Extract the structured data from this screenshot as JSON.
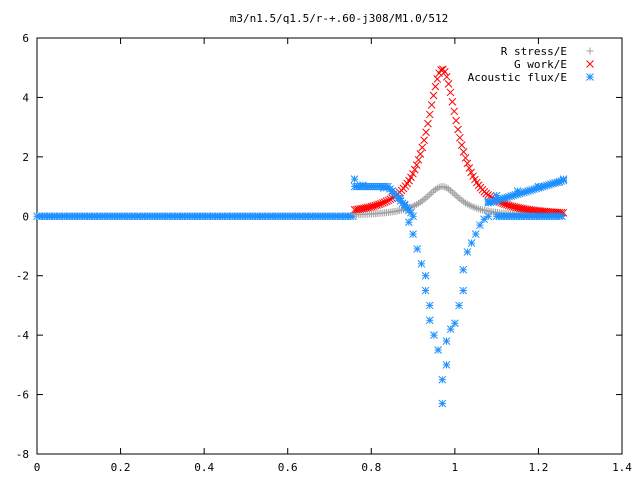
{
  "chart_data": {
    "type": "scatter",
    "title": "m3/n1.5/q1.5/r-+.60-j308/M1.0/512",
    "xlabel": "",
    "ylabel": "",
    "xlim": [
      0,
      1.4
    ],
    "ylim": [
      -8,
      6
    ],
    "xticks": [
      "0",
      "0.2",
      "0.4",
      "0.6",
      "0.8",
      "1",
      "1.2",
      "1.4"
    ],
    "yticks": [
      "6",
      "4",
      "2",
      "0",
      "-2",
      "-4",
      "-6",
      "-8"
    ],
    "grid": false,
    "legend_position": "top-right",
    "series": [
      {
        "name": "R stress/E",
        "marker": "+",
        "color": "#a0a0a0",
        "model": "lorentzian peak on zero baseline, x from 0.76 to 1.26, overlapping markers",
        "points": [
          [
            0.76,
            0.02
          ],
          [
            0.8,
            0.05
          ],
          [
            0.85,
            0.15
          ],
          [
            0.88,
            0.28
          ],
          [
            0.9,
            0.42
          ],
          [
            0.92,
            0.62
          ],
          [
            0.94,
            0.85
          ],
          [
            0.96,
            0.98
          ],
          [
            0.97,
            1.0
          ],
          [
            0.98,
            0.97
          ],
          [
            1.0,
            0.82
          ],
          [
            1.02,
            0.6
          ],
          [
            1.04,
            0.42
          ],
          [
            1.06,
            0.28
          ],
          [
            1.08,
            0.18
          ],
          [
            1.1,
            0.12
          ],
          [
            1.15,
            0.05
          ],
          [
            1.2,
            0.02
          ],
          [
            1.26,
            0.01
          ]
        ]
      },
      {
        "name": "G work/E",
        "marker": "x",
        "color": "#ff0000",
        "model": "lorentzian peak on zero baseline, x from 0.76 to 1.26, overlapping markers",
        "points": [
          [
            0.76,
            0.0
          ],
          [
            0.8,
            0.08
          ],
          [
            0.85,
            0.3
          ],
          [
            0.88,
            0.6
          ],
          [
            0.9,
            1.2
          ],
          [
            0.92,
            2.3
          ],
          [
            0.94,
            3.6
          ],
          [
            0.96,
            4.7
          ],
          [
            0.97,
            4.95
          ],
          [
            0.98,
            4.85
          ],
          [
            1.0,
            3.8
          ],
          [
            1.02,
            2.7
          ],
          [
            1.04,
            1.7
          ],
          [
            1.06,
            1.0
          ],
          [
            1.08,
            0.6
          ],
          [
            1.1,
            0.35
          ],
          [
            1.15,
            0.12
          ],
          [
            1.2,
            0.05
          ],
          [
            1.26,
            0.02
          ]
        ]
      },
      {
        "name": "Acoustic flux/E",
        "marker": "*",
        "color": "#1e90ff",
        "model": "zero line from x=0 to 0.76 and to 1.26; plus two branches and a scattered lower cloud",
        "points": [
          [
            0.76,
            1.25
          ],
          [
            0.78,
            1.05
          ],
          [
            0.8,
            1.0
          ],
          [
            0.83,
            0.95
          ],
          [
            0.85,
            0.85
          ],
          [
            0.87,
            0.6
          ],
          [
            0.88,
            0.4
          ],
          [
            0.9,
            0.0
          ],
          [
            1.08,
            0.5
          ],
          [
            1.1,
            0.7
          ],
          [
            1.15,
            0.85
          ],
          [
            1.2,
            1.0
          ],
          [
            1.25,
            1.15
          ],
          [
            1.26,
            1.25
          ],
          [
            0.89,
            -0.2
          ],
          [
            0.9,
            -0.6
          ],
          [
            0.91,
            -1.1
          ],
          [
            0.92,
            -1.6
          ],
          [
            0.93,
            -2.0
          ],
          [
            0.93,
            -2.5
          ],
          [
            0.94,
            -3.0
          ],
          [
            0.94,
            -3.5
          ],
          [
            0.95,
            -4.0
          ],
          [
            0.96,
            -4.5
          ],
          [
            0.97,
            -5.5
          ],
          [
            0.97,
            -6.3
          ],
          [
            0.98,
            -5.0
          ],
          [
            0.98,
            -4.2
          ],
          [
            0.99,
            -3.8
          ],
          [
            1.0,
            -3.6
          ],
          [
            1.01,
            -3.0
          ],
          [
            1.02,
            -2.5
          ],
          [
            1.02,
            -1.8
          ],
          [
            1.03,
            -1.2
          ],
          [
            1.04,
            -0.9
          ],
          [
            1.05,
            -0.6
          ],
          [
            1.06,
            -0.3
          ],
          [
            1.07,
            -0.1
          ],
          [
            1.08,
            0.0
          ]
        ]
      }
    ]
  }
}
